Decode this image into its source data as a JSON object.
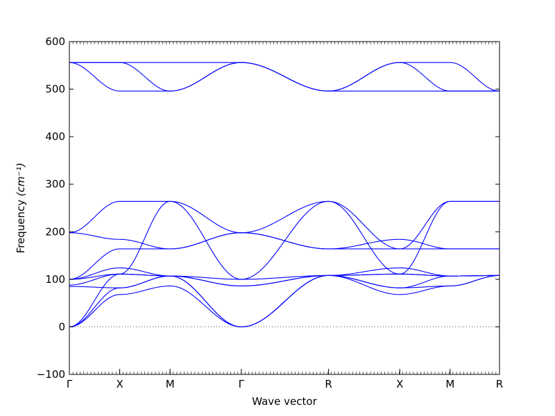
{
  "chart_data": {
    "type": "line",
    "xlabel": "Wave vector",
    "ylabel": "Frequency ",
    "ylabel_unit": "(cm⁻¹)",
    "ylim": [
      -100,
      600
    ],
    "yticks": [
      -100,
      0,
      100,
      200,
      300,
      400,
      500,
      600
    ],
    "grid": false,
    "legend": "none",
    "zero_line": {
      "y": 0,
      "style": "dotted",
      "color": "#555555"
    },
    "line_color": "#0000ff",
    "kpath": [
      {
        "label": "Γ",
        "x": 0.0
      },
      {
        "label": "X",
        "x": 0.5
      },
      {
        "label": "M",
        "x": 1.0
      },
      {
        "label": "Γ",
        "x": 1.707
      },
      {
        "label": "R",
        "x": 2.573
      },
      {
        "label": "X",
        "x": 3.28
      },
      {
        "label": "M",
        "x": 3.78
      },
      {
        "label": "R",
        "x": 4.27
      }
    ],
    "series": [
      {
        "values": [
          [
            0.0,
            0
          ],
          [
            0.5,
            68
          ],
          [
            1.0,
            86
          ],
          [
            1.707,
            0
          ],
          [
            2.573,
            108
          ],
          [
            3.28,
            68
          ],
          [
            3.78,
            86
          ],
          [
            4.27,
            108
          ]
        ]
      },
      {
        "values": [
          [
            0.0,
            0
          ],
          [
            0.5,
            82
          ],
          [
            1.0,
            107
          ],
          [
            1.707,
            0
          ],
          [
            2.573,
            108
          ],
          [
            3.28,
            82
          ],
          [
            3.78,
            86
          ],
          [
            4.27,
            108
          ]
        ]
      },
      {
        "values": [
          [
            0.0,
            0
          ],
          [
            0.5,
            111
          ],
          [
            1.0,
            107
          ],
          [
            1.707,
            0
          ],
          [
            2.573,
            108
          ],
          [
            3.28,
            111
          ],
          [
            3.78,
            107
          ],
          [
            4.27,
            108
          ]
        ]
      },
      {
        "values": [
          [
            0.0,
            85
          ],
          [
            0.5,
            82
          ],
          [
            1.0,
            107
          ],
          [
            1.707,
            86
          ],
          [
            2.573,
            108
          ],
          [
            3.28,
            82
          ],
          [
            3.78,
            107
          ],
          [
            4.27,
            108
          ]
        ]
      },
      {
        "values": [
          [
            0.0,
            88
          ],
          [
            0.5,
            111
          ],
          [
            1.0,
            107
          ],
          [
            1.707,
            86
          ],
          [
            2.573,
            108
          ],
          [
            3.28,
            111
          ],
          [
            3.78,
            107
          ],
          [
            4.27,
            108
          ]
        ]
      },
      {
        "values": [
          [
            0.0,
            100
          ],
          [
            0.5,
            124
          ],
          [
            1.0,
            107
          ],
          [
            1.707,
            100
          ],
          [
            2.573,
            108
          ],
          [
            3.28,
            124
          ],
          [
            3.78,
            107
          ],
          [
            4.27,
            108
          ]
        ]
      },
      {
        "values": [
          [
            0.0,
            100
          ],
          [
            0.5,
            111
          ],
          [
            1.0,
            264
          ],
          [
            1.707,
            100
          ],
          [
            2.573,
            264
          ],
          [
            3.28,
            111
          ],
          [
            3.78,
            264
          ],
          [
            4.27,
            264
          ]
        ]
      },
      {
        "values": [
          [
            0.0,
            198
          ],
          [
            0.5,
            264
          ],
          [
            1.0,
            264
          ],
          [
            1.707,
            198
          ],
          [
            2.573,
            264
          ],
          [
            3.28,
            164
          ],
          [
            3.78,
            164
          ],
          [
            4.27,
            164
          ]
        ]
      },
      {
        "values": [
          [
            0.0,
            198
          ],
          [
            0.5,
            184
          ],
          [
            1.0,
            164
          ],
          [
            1.707,
            198
          ],
          [
            2.573,
            164
          ],
          [
            3.28,
            184
          ],
          [
            3.78,
            164
          ],
          [
            4.27,
            164
          ]
        ]
      },
      {
        "values": [
          [
            0.0,
            100
          ],
          [
            0.5,
            164
          ],
          [
            1.0,
            164
          ],
          [
            1.707,
            198
          ],
          [
            2.573,
            164
          ],
          [
            3.28,
            164
          ],
          [
            3.78,
            264
          ],
          [
            4.27,
            264
          ]
        ]
      },
      {
        "values": [
          [
            0.0,
            556
          ],
          [
            0.5,
            556
          ],
          [
            1.0,
            556
          ],
          [
            1.707,
            556
          ],
          [
            2.573,
            496
          ],
          [
            3.28,
            496
          ],
          [
            3.78,
            496
          ],
          [
            4.27,
            496
          ]
        ]
      },
      {
        "values": [
          [
            0.0,
            556
          ],
          [
            0.5,
            556
          ],
          [
            1.0,
            496
          ],
          [
            1.707,
            556
          ],
          [
            2.573,
            496
          ],
          [
            3.28,
            556
          ],
          [
            3.78,
            556
          ],
          [
            4.27,
            496
          ]
        ]
      },
      {
        "values": [
          [
            0.0,
            556
          ],
          [
            0.5,
            496
          ],
          [
            1.0,
            496
          ],
          [
            1.707,
            556
          ],
          [
            2.573,
            496
          ],
          [
            3.28,
            556
          ],
          [
            3.78,
            496
          ],
          [
            4.27,
            496
          ]
        ]
      }
    ]
  }
}
